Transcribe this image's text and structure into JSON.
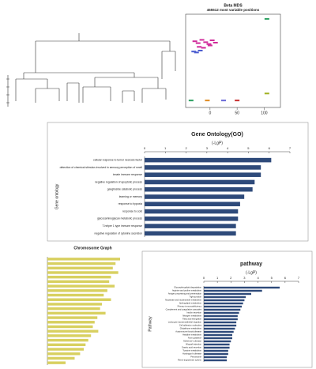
{
  "chart_data": [
    {
      "type": "scatter",
      "title": "Beta MDS",
      "subtitle": "465512 most variable positions",
      "xlim": [
        -45,
        130
      ],
      "ylim": [
        -100,
        100
      ],
      "xticks": [
        0,
        50,
        100
      ],
      "series": [
        {
          "color": "#d02a9a",
          "x": [
            -28,
            -22,
            -15,
            -8,
            -2,
            4,
            10,
            -20,
            -12,
            0
          ],
          "values": [
            42,
            38,
            45,
            40,
            36,
            44,
            39,
            30,
            28,
            33
          ]
        },
        {
          "color": "#4a5bd0",
          "x": [
            -30,
            -25,
            -18
          ],
          "values": [
            20,
            18,
            22
          ]
        },
        {
          "color": "#2aa060",
          "x": [
            105,
            -35
          ],
          "values": [
            90,
            -85
          ]
        },
        {
          "color": "#e08a20",
          "x": [
            -5
          ],
          "values": [
            -85
          ]
        },
        {
          "color": "#6a6ad8",
          "x": [
            25
          ],
          "values": [
            -85
          ]
        },
        {
          "color": "#c83030",
          "x": [
            50
          ],
          "values": [
            -85
          ]
        },
        {
          "color": "#a0b020",
          "x": [
            105
          ],
          "values": [
            -70
          ]
        }
      ]
    },
    {
      "type": "hbar",
      "title": "Gene Ontology(GO)",
      "xlabel": "(-LgP)",
      "ylabel": "Gene ontology",
      "color": "#2e4a7a",
      "xlim": [
        0,
        7
      ],
      "xticks": [
        0,
        1,
        2,
        3,
        4,
        5,
        6,
        7
      ],
      "categories": [
        "cellular response to tumor necrosis factor",
        "detection of chemical stimulus involved in sensory perception of smell",
        "innate immune response",
        "negative regulation of apoptotic process",
        "ganglioside catabolic process",
        "learning or memory",
        "response to hypoxia",
        "response to cold",
        "glycosaminoglycan metabolic process",
        "T-helper 1 type immune response",
        "negative regulation of cytokine secretion"
      ],
      "values": [
        6.1,
        5.6,
        5.6,
        5.3,
        5.2,
        4.8,
        4.6,
        4.5,
        4.5,
        4.4,
        4.4
      ]
    },
    {
      "type": "hbar",
      "title": "Chromosome Graph",
      "color": "#d8d060",
      "xlim": [
        0,
        100
      ],
      "categories": [
        null,
        null,
        null,
        null,
        null,
        null,
        null,
        null,
        null,
        null,
        null,
        null,
        null,
        null,
        null,
        null,
        null,
        null,
        null,
        null,
        null,
        null,
        null,
        null
      ],
      "values": [
        80,
        75,
        72,
        78,
        70,
        68,
        74,
        66,
        62,
        70,
        60,
        58,
        64,
        55,
        52,
        50,
        56,
        48,
        45,
        42,
        40,
        36,
        30,
        20
      ]
    },
    {
      "type": "hbar",
      "title": "pathway",
      "xlabel": "(-LgP)",
      "ylabel": "Pathway",
      "color": "#2e4a7a",
      "xlim": [
        0,
        7
      ],
      "xticks": [
        0,
        1,
        2,
        3,
        4,
        5,
        6,
        7
      ],
      "categories": [
        "Glycosphingolipid degradation",
        "Arginine and proline metabolism",
        "Antigen processing and presentation",
        "Tight junction",
        "Nicotinate and nicotinamide metabolism",
        "Sphingolipid metabolism",
        "Primary immunodeficiency",
        "Complement and coagulation cascades",
        "Insulin secretion",
        "Nitrogen metabolism",
        "Fatty acid elongation",
        "Leukocyte transendothelial migration",
        "Cell adhesion molecules",
        "Glutathione metabolism",
        "Autoimmune thyroid disease",
        "Histidine metabolism",
        "Axon guidance",
        "Alzheimer's disease",
        "Allograft rejection",
        "Gastric acid secretion",
        "Tyrosine metabolism",
        "Huntington's disease",
        "Peroxisome",
        "Renin-angiotensin system"
      ],
      "values": [
        5.6,
        4.3,
        3.5,
        3.1,
        3.0,
        2.9,
        2.8,
        2.7,
        2.6,
        2.5,
        2.5,
        2.4,
        2.4,
        2.3,
        2.2,
        2.1,
        2.1,
        2.0,
        1.9,
        1.9,
        1.8,
        1.8,
        1.7,
        1.7
      ]
    }
  ]
}
